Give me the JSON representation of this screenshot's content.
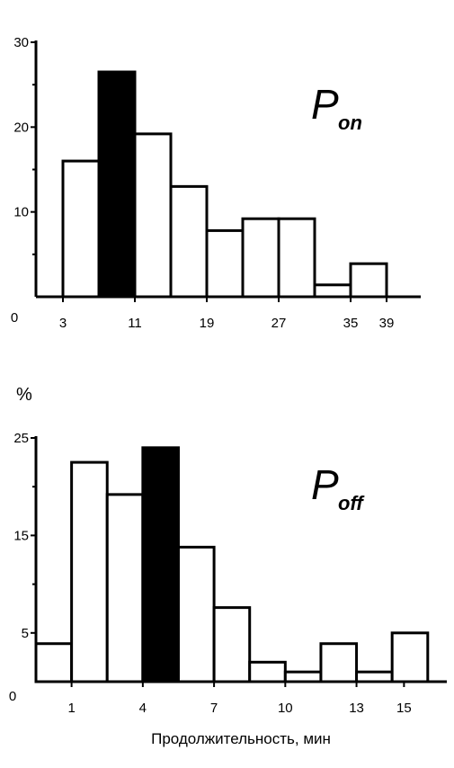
{
  "y_unit_label": "%",
  "chart_data": [
    {
      "type": "bar",
      "title_main": "P",
      "title_sub": "on",
      "origin_label": "0",
      "x_ticks": [
        "3",
        "11",
        "19",
        "27",
        "35",
        "39"
      ],
      "x_tick_values": [
        3,
        11,
        19,
        27,
        35,
        39
      ],
      "xlim": [
        0,
        42
      ],
      "y_ticks": [
        "10",
        "20",
        "30"
      ],
      "y_tick_values": [
        10,
        20,
        30
      ],
      "ylim": [
        0,
        30
      ],
      "bins": [
        {
          "from": 3,
          "to": 7,
          "value": 16,
          "highlight": false
        },
        {
          "from": 7,
          "to": 11,
          "value": 26.5,
          "highlight": true
        },
        {
          "from": 11,
          "to": 15,
          "value": 19.2,
          "highlight": false
        },
        {
          "from": 15,
          "to": 19,
          "value": 13,
          "highlight": false
        },
        {
          "from": 19,
          "to": 23,
          "value": 7.8,
          "highlight": false
        },
        {
          "from": 23,
          "to": 27,
          "value": 9.2,
          "highlight": false
        },
        {
          "from": 27,
          "to": 31,
          "value": 9.2,
          "highlight": false
        },
        {
          "from": 31,
          "to": 35,
          "value": 1.4,
          "highlight": false
        },
        {
          "from": 35,
          "to": 39,
          "value": 3.9,
          "highlight": false
        }
      ]
    },
    {
      "type": "bar",
      "title_main": "P",
      "title_sub": "off",
      "origin_label": "0",
      "xlabel": "Продолжительность, мин",
      "x_ticks": [
        "1",
        "4",
        "7",
        "10",
        "13",
        "15"
      ],
      "x_tick_values": [
        1,
        4,
        7,
        10,
        13,
        15
      ],
      "xlim": [
        -0.5,
        16.5
      ],
      "y_ticks": [
        "5",
        "15",
        "25"
      ],
      "y_tick_values": [
        5,
        15,
        25
      ],
      "ylim": [
        0,
        25
      ],
      "bins": [
        {
          "from": -0.5,
          "to": 1,
          "value": 3.9,
          "highlight": false
        },
        {
          "from": 1,
          "to": 2.5,
          "value": 22.5,
          "highlight": false
        },
        {
          "from": 2.5,
          "to": 4,
          "value": 19.2,
          "highlight": false
        },
        {
          "from": 4,
          "to": 5.5,
          "value": 24,
          "highlight": true
        },
        {
          "from": 5.5,
          "to": 7,
          "value": 13.8,
          "highlight": false
        },
        {
          "from": 7,
          "to": 8.5,
          "value": 7.6,
          "highlight": false
        },
        {
          "from": 8.5,
          "to": 10,
          "value": 2,
          "highlight": false
        },
        {
          "from": 10,
          "to": 11.5,
          "value": 1,
          "highlight": false
        },
        {
          "from": 11.5,
          "to": 13,
          "value": 3.9,
          "highlight": false
        },
        {
          "from": 13,
          "to": 14.5,
          "value": 1,
          "highlight": false
        },
        {
          "from": 14.5,
          "to": 16,
          "value": 5,
          "highlight": false
        }
      ]
    }
  ]
}
